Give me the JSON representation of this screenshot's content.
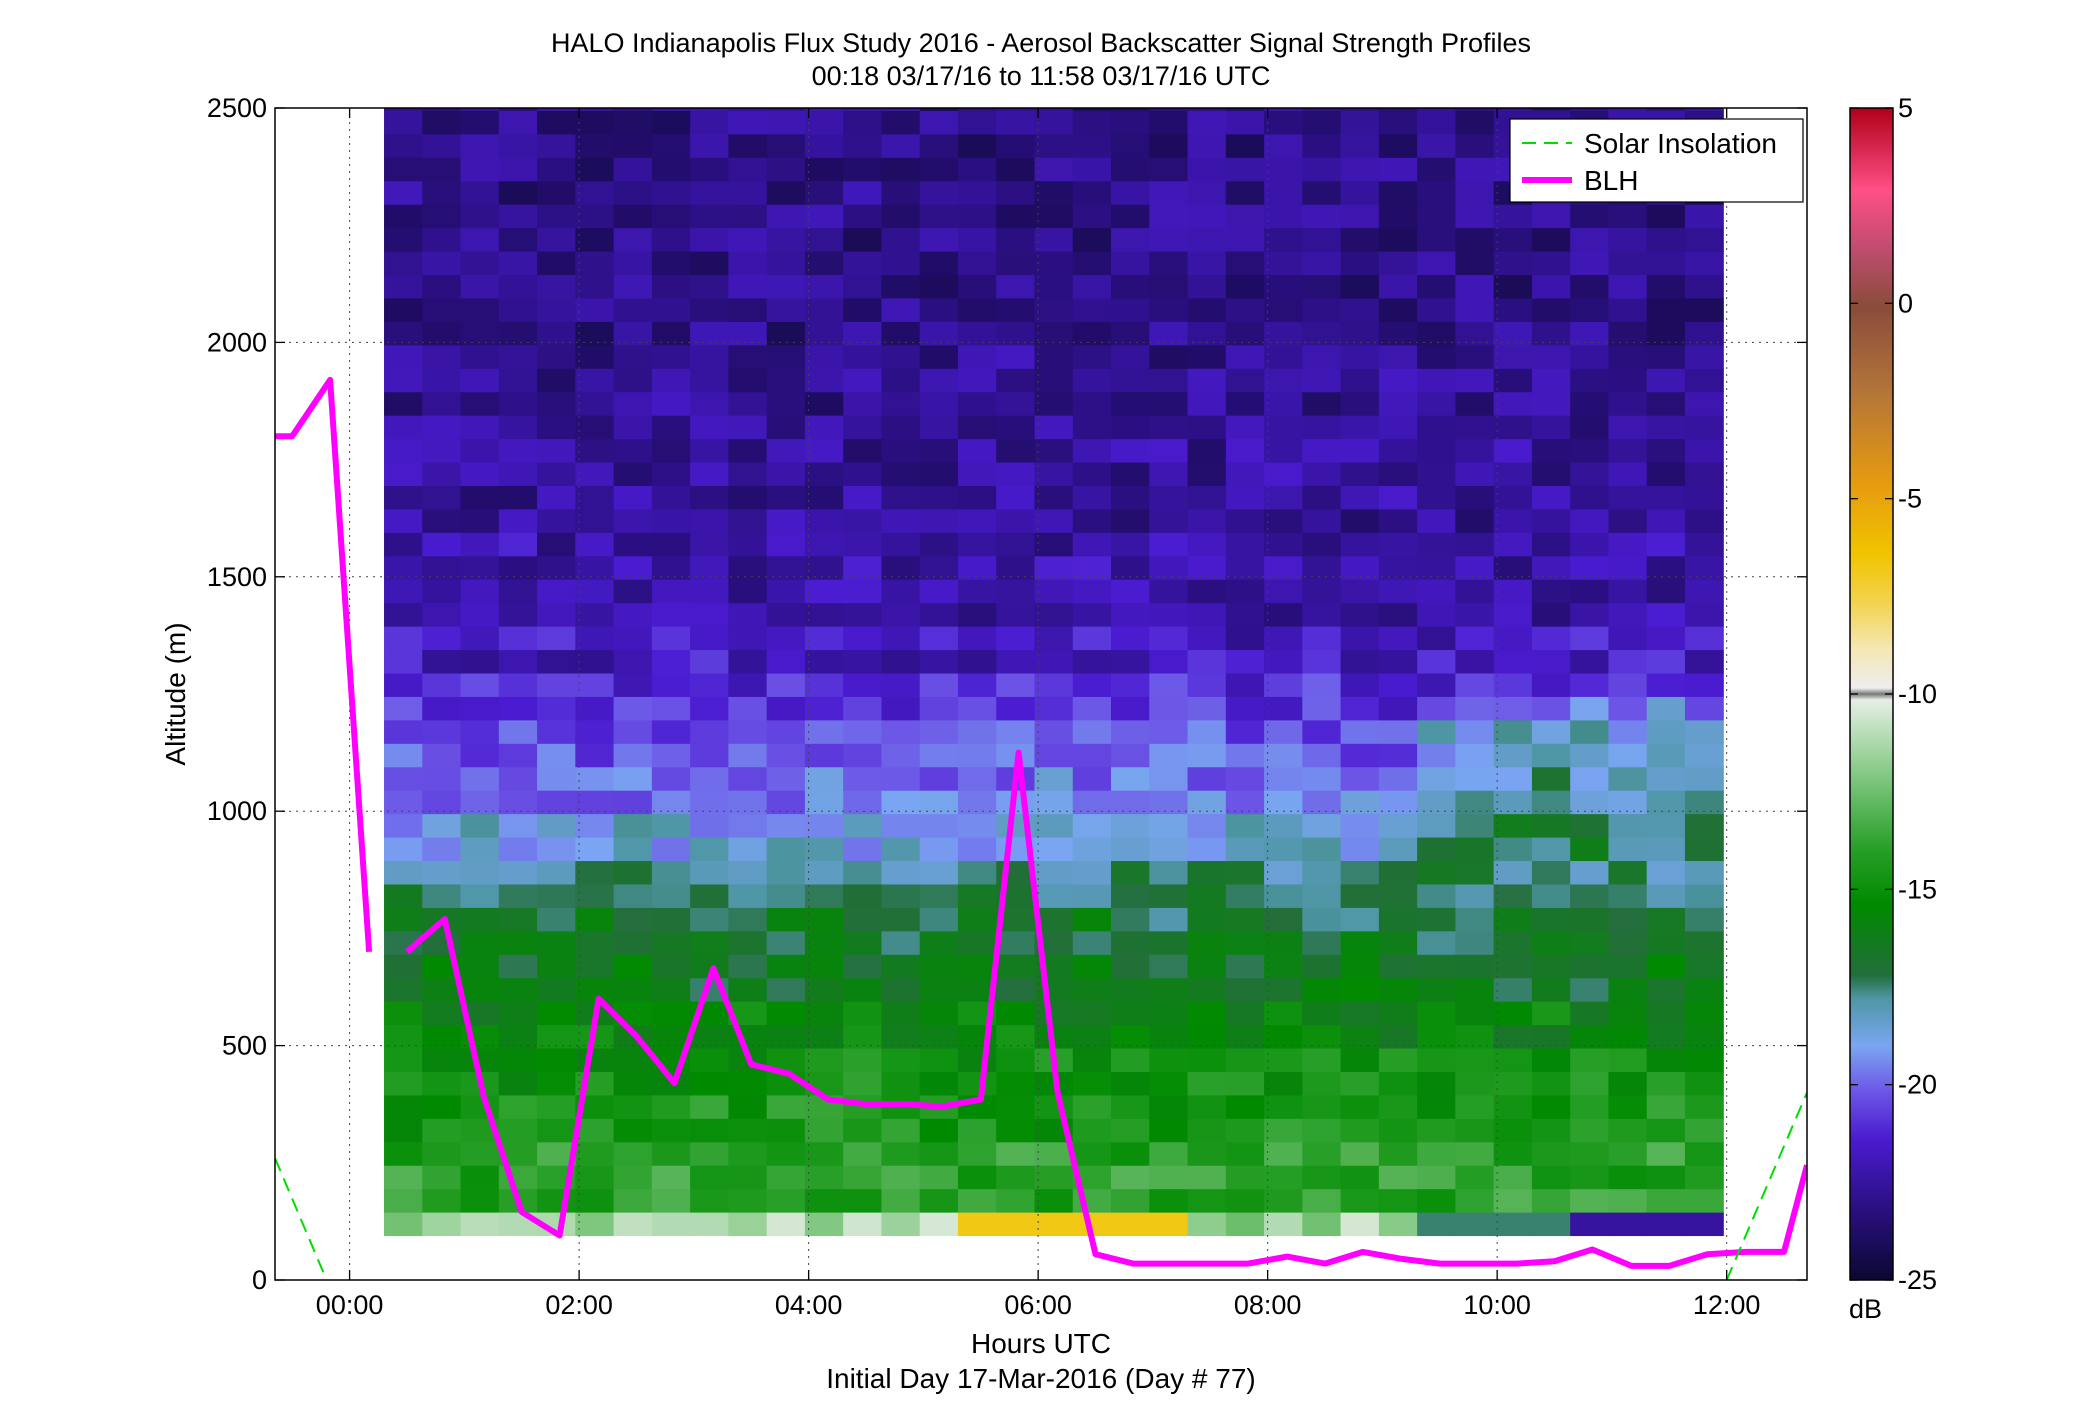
{
  "chart_data": {
    "type": "heatmap",
    "title": "HALO Indianapolis Flux Study 2016 - Aerosol Backscatter Signal Strength Profiles",
    "subtitle": "00:18 03/17/16 to 11:58 03/17/16  UTC",
    "xlabel": "Hours UTC",
    "xlabel2": "Initial Day 17-Mar-2016 (Day # 77)",
    "ylabel": "Altitude (m)",
    "xlim": [
      -0.65,
      12.7
    ],
    "ylim": [
      0,
      2500
    ],
    "grid": true,
    "x_ticks": [
      {
        "value": 0,
        "label": "00:00"
      },
      {
        "value": 2,
        "label": "02:00"
      },
      {
        "value": 4,
        "label": "04:00"
      },
      {
        "value": 6,
        "label": "06:00"
      },
      {
        "value": 8,
        "label": "08:00"
      },
      {
        "value": 10,
        "label": "10:00"
      },
      {
        "value": 12,
        "label": "12:00"
      }
    ],
    "y_ticks": [
      0,
      500,
      1000,
      1500,
      2000,
      2500
    ],
    "colorbar": {
      "unit": "dB",
      "range": [
        -25,
        5
      ],
      "ticks": [
        5,
        0,
        -5,
        -10,
        -15,
        -20,
        -25
      ]
    },
    "heatmap": {
      "x_start": 0.3,
      "x_end": 11.97,
      "y_start": 95,
      "y_end": 2500,
      "note_scale": "signal strength dB",
      "columns": 35,
      "layers_bottom_up": [
        {
          "top": 145,
          "base": -11.5
        },
        {
          "top": 300,
          "base": -14.0
        },
        {
          "top": 400,
          "base": -14.6
        },
        {
          "top": 500,
          "base": -14.8
        },
        {
          "top": 600,
          "base": -15.6
        },
        {
          "top": 700,
          "base": -16.4
        },
        {
          "top": 800,
          "base": -16.8
        },
        {
          "top": 900,
          "base": -17.5
        },
        {
          "top": 1000,
          "base": -18.8
        },
        {
          "top": 1100,
          "base": -19.6
        },
        {
          "top": 1200,
          "base": -20.2
        },
        {
          "top": 1300,
          "base": -21.0
        },
        {
          "top": 1400,
          "base": -21.8
        },
        {
          "top": 1600,
          "base": -22.3
        },
        {
          "top": 1800,
          "base": -22.6
        },
        {
          "top": 2000,
          "base": -22.8
        },
        {
          "top": 2500,
          "base": -23.0
        }
      ]
    },
    "legend": {
      "placement": "top-right",
      "entries": [
        "Solar Insolation",
        "BLH"
      ]
    },
    "series": [
      {
        "name": "BLH",
        "color": "#ff00ff",
        "segments": [
          {
            "x": [
              -0.65,
              -0.5,
              -0.17,
              0.17
            ],
            "y": [
              1800,
              1800,
              1920,
              700
            ]
          },
          {
            "x": [
              0.5,
              0.83,
              1.17,
              1.5,
              1.83,
              2.17,
              2.5,
              2.83,
              3.17,
              3.5,
              3.83,
              4.17,
              4.5,
              4.83,
              5.17,
              5.5,
              5.83,
              6.17,
              6.5,
              6.83,
              7.17,
              7.5,
              7.83,
              8.17,
              8.5,
              8.83,
              9.17,
              9.5,
              9.83,
              10.17,
              10.5,
              10.83,
              11.17,
              11.5,
              11.83,
              12.17,
              12.5,
              12.7
            ],
            "y": [
              700,
              770,
              390,
              145,
              95,
              600,
              520,
              420,
              665,
              460,
              440,
              385,
              375,
              375,
              370,
              385,
              1125,
              400,
              55,
              35,
              35,
              35,
              35,
              50,
              35,
              60,
              45,
              35,
              35,
              35,
              40,
              65,
              30,
              30,
              55,
              60,
              60,
              245
            ]
          }
        ]
      },
      {
        "name": "Solar Insolation",
        "color": "#00dd00",
        "segments": [
          {
            "x": [
              -0.65,
              -0.2
            ],
            "y": [
              260,
              0
            ]
          },
          {
            "x": [
              12.0,
              12.7
            ],
            "y": [
              0,
              400
            ]
          }
        ]
      }
    ]
  }
}
